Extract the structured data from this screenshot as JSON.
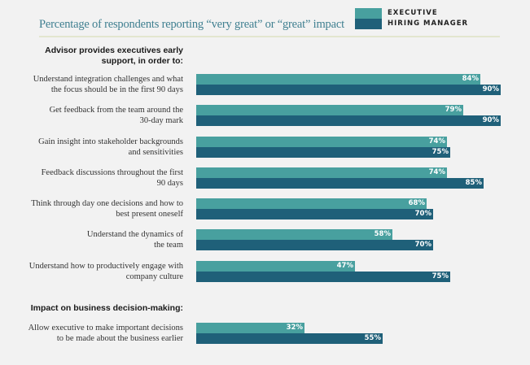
{
  "chart_data": {
    "type": "bar",
    "orientation": "horizontal",
    "title": "Percentage of respondents reporting “very great” or “great” impact",
    "xlim": [
      0,
      90
    ],
    "grid": false,
    "legend_position": "top-right",
    "series": [
      {
        "name": "EXECUTIVE",
        "color": "#48a09f",
        "values": [
          84,
          79,
          74,
          74,
          68,
          58,
          47,
          32
        ]
      },
      {
        "name": "HIRING MANAGER",
        "color": "#1f6079",
        "values": [
          90,
          90,
          75,
          85,
          70,
          70,
          75,
          55
        ]
      }
    ],
    "sections": [
      {
        "heading": "Advisor provides executives early support, in order to:",
        "heading_lines": [
          "Advisor provides executives early",
          "support, in order to:"
        ],
        "category_indices": [
          0,
          1,
          2,
          3,
          4,
          5,
          6
        ]
      },
      {
        "heading": "Impact on business decision-making:",
        "heading_lines": [
          "Impact on business decision-making:"
        ],
        "category_indices": [
          7
        ]
      }
    ],
    "categories": [
      {
        "label": "Understand integration challenges and what the focus should be in the first 90 days",
        "lines": [
          "Understand integration challenges and what",
          "the focus should be in the first 90 days"
        ]
      },
      {
        "label": "Get feedback from the team around the 30-day mark",
        "lines": [
          "Get feedback from the team around the",
          "30-day mark"
        ]
      },
      {
        "label": "Gain insight into stakeholder backgrounds and sensitivities",
        "lines": [
          "Gain insight into stakeholder backgrounds",
          "and sensitivities"
        ]
      },
      {
        "label": "Feedback discussions throughout the first 90 days",
        "lines": [
          "Feedback discussions throughout the first",
          "90 days"
        ]
      },
      {
        "label": "Think through day one decisions and how to best present oneself",
        "lines": [
          "Think through day one decisions and how to",
          "best present oneself"
        ]
      },
      {
        "label": "Understand the dynamics of the team",
        "lines": [
          "Understand the dynamics of",
          "the team"
        ]
      },
      {
        "label": "Understand how to productively engage with company culture",
        "lines": [
          "Understand how to productively engage with",
          "company culture"
        ]
      },
      {
        "label": "Allow executive to make important decisions to be made about the business earlier",
        "lines": [
          "Allow executive to make important decisions",
          "to be made about the business earlier"
        ]
      }
    ],
    "value_suffix": "%"
  }
}
